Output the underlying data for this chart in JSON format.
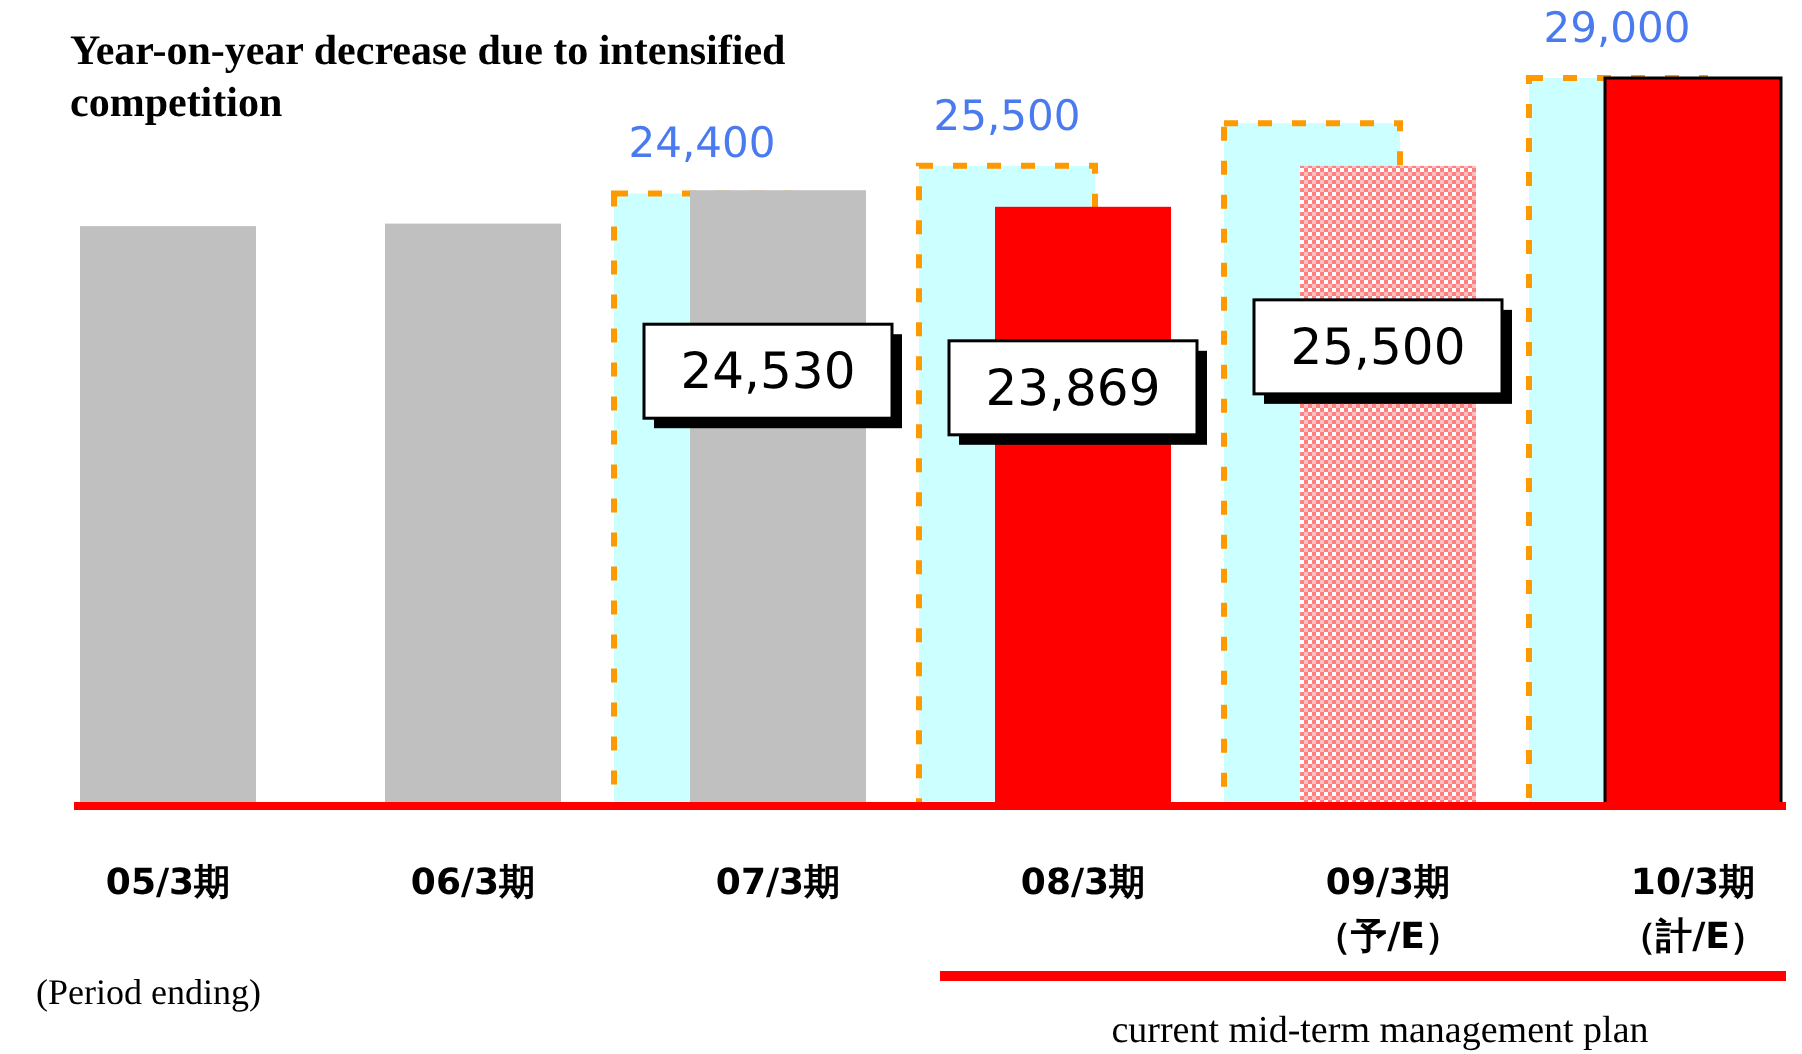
{
  "chart_data": {
    "type": "bar",
    "title": "Year-on-year decrease due to intensified competition",
    "categories": [
      "05/3期",
      "06/3期",
      "07/3期",
      "08/3期",
      "09/3期（予/E）",
      "10/3期（計/E）"
    ],
    "series": [
      {
        "color": "#ccffff",
        "values": [
          null,
          null,
          24400,
          25500,
          27200,
          29000
        ],
        "value_labels": [
          null,
          null,
          "24,400",
          "25,500",
          null,
          "29,000"
        ]
      },
      {
        "colors": [
          "#c0c0c0",
          "#c0c0c0",
          "#c0c0c0",
          "#ff0000",
          "#ff8080",
          "#ff0000"
        ],
        "values": [
          23100,
          23200,
          24530,
          23869,
          25500,
          29000
        ],
        "value_labels": [
          null,
          null,
          "24,530",
          "23,869",
          "25,500",
          null
        ]
      }
    ],
    "annotations": [
      "(Period ending)",
      "current mid-term management plan"
    ]
  }
}
